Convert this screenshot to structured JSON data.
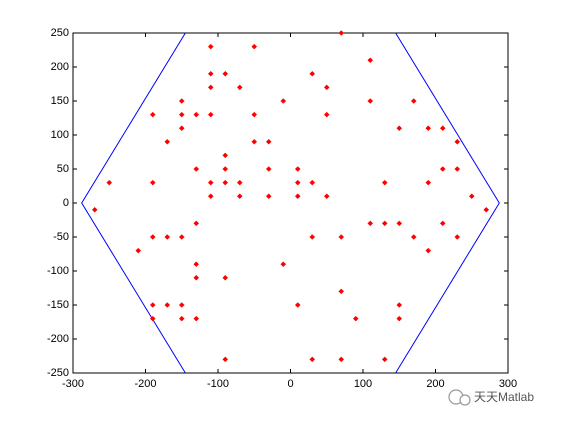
{
  "chart_data": {
    "type": "scatter",
    "xlim": [
      -300,
      300
    ],
    "xticks": [
      -300,
      -200,
      -100,
      0,
      100,
      200,
      300
    ],
    "ylim": [
      -250,
      250
    ],
    "yticks": [
      -250,
      -200,
      -150,
      -100,
      -50,
      0,
      50,
      100,
      150,
      200,
      250
    ],
    "series": [
      {
        "type": "line",
        "color": "#0000ff",
        "x": [
          -145,
          -288,
          -145,
          null,
          145,
          288,
          145
        ],
        "y": [
          250,
          0,
          -250,
          null,
          250,
          0,
          -250
        ]
      },
      {
        "type": "scatter",
        "color": "#ff0000",
        "marker": "diamond",
        "x": [
          -110,
          -50,
          70,
          110,
          -110,
          -110,
          -90,
          -70,
          30,
          50,
          -190,
          -150,
          -150,
          -150,
          -170,
          -130,
          -110,
          -50,
          -10,
          50,
          110,
          170,
          150,
          190,
          210,
          230,
          -50,
          -30,
          -90,
          -90,
          -130,
          -30,
          10,
          210,
          230,
          -250,
          -190,
          -110,
          -90,
          -70,
          10,
          30,
          130,
          190,
          -110,
          -70,
          -30,
          10,
          50,
          250,
          -270,
          270,
          -130,
          110,
          130,
          150,
          210,
          -190,
          -170,
          -150,
          30,
          70,
          170,
          230,
          -210,
          190,
          -130,
          -10,
          -130,
          -90,
          70,
          -190,
          -170,
          -150,
          10,
          150,
          -190,
          -150,
          -130,
          90,
          150,
          -90,
          30,
          70,
          130
        ],
        "y": [
          230,
          230,
          250,
          210,
          190,
          170,
          190,
          170,
          190,
          170,
          130,
          150,
          130,
          110,
          90,
          130,
          130,
          130,
          150,
          130,
          150,
          150,
          110,
          110,
          110,
          90,
          90,
          90,
          70,
          50,
          50,
          50,
          50,
          50,
          50,
          30,
          30,
          30,
          30,
          30,
          30,
          30,
          30,
          30,
          10,
          10,
          10,
          10,
          10,
          10,
          -10,
          -10,
          -30,
          -30,
          -30,
          -30,
          -30,
          -50,
          -50,
          -50,
          -50,
          -50,
          -50,
          -50,
          -70,
          -70,
          -90,
          -90,
          -110,
          -110,
          -130,
          -150,
          -150,
          -150,
          -150,
          -150,
          -170,
          -170,
          -170,
          -170,
          -170,
          -230,
          -230,
          -230,
          -230
        ]
      }
    ],
    "watermark": "天天Matlab"
  }
}
